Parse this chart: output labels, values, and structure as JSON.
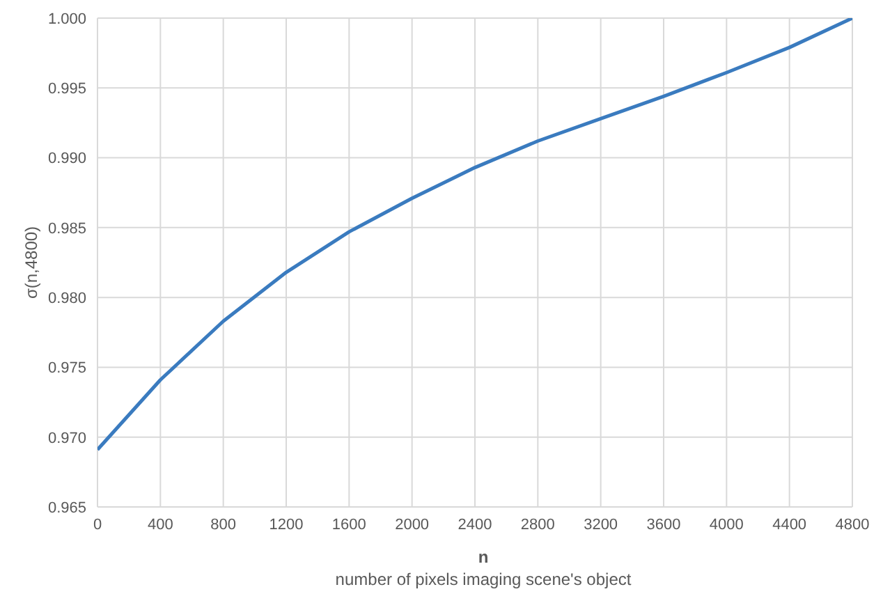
{
  "chart_data": {
    "type": "line",
    "xlabel": "n\nnumber of pixels imaging scene's object",
    "ylabel": "σ(n,4800)",
    "x": [
      0,
      400,
      800,
      1200,
      1600,
      2000,
      2400,
      2800,
      3200,
      3600,
      4000,
      4400,
      4800
    ],
    "series": [
      {
        "color": "#3a7bbf",
        "values": [
          0.9691,
          0.9741,
          0.9783,
          0.9818,
          0.9847,
          0.9871,
          0.9893,
          0.9912,
          0.9928,
          0.9944,
          0.9961,
          0.9979,
          1.0
        ]
      }
    ],
    "xlim": [
      0,
      4800
    ],
    "xticks": [
      0,
      400,
      800,
      1200,
      1600,
      2000,
      2400,
      2800,
      3200,
      3600,
      4000,
      4400,
      4800
    ],
    "ylim": [
      0.965,
      1.0
    ],
    "yticks": [
      0.965,
      {
        "value": 0.97,
        "label": "0.970"
      },
      0.975,
      {
        "value": 0.98,
        "label": "0.980"
      },
      0.985,
      {
        "value": 0.99,
        "label": "0.990"
      },
      0.995,
      {
        "value": 1.0,
        "label": "1.000"
      }
    ],
    "grid": true,
    "legend": false,
    "marker": "none",
    "line_style": "solid"
  }
}
